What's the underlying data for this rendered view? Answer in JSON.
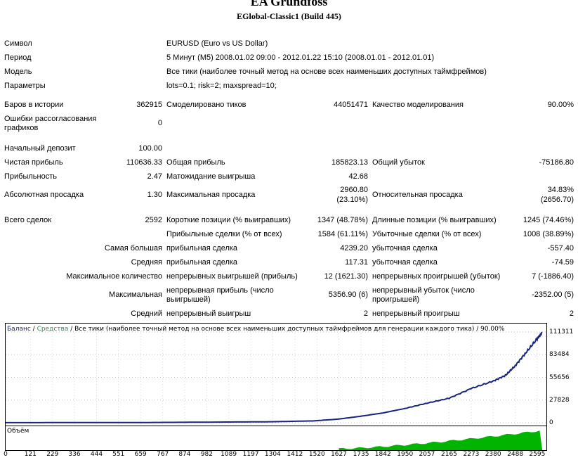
{
  "header": {
    "title": "EA Grundfoss",
    "server": "EGlobal-Classic1 (Build 445)"
  },
  "settings": [
    {
      "label": "Символ",
      "value": "EURUSD (Euro vs US Dollar)"
    },
    {
      "label": "Период",
      "value": "5 Минут (M5) 2008.01.02 09:00 - 2012.01.22 15:10 (2008.01.01 - 2012.01.01)"
    },
    {
      "label": "Модель",
      "value": "Все тики (наиболее точный метод на основе всех наименьших доступных таймфреймов)"
    },
    {
      "label": "Параметры",
      "value": "lots=0.1; risk=2; maxspread=10;"
    }
  ],
  "stats": {
    "bars_label": "Баров в истории",
    "bars_value": "362915",
    "ticks_label": "Смоделировано тиков",
    "ticks_value": "44051471",
    "quality_label": "Качество моделирования",
    "quality_value": "90.00%",
    "errors_label": "Ошибки рассогласования графиков",
    "errors_value": "0",
    "deposit_label": "Начальный депозит",
    "deposit_value": "100.00",
    "net_label": "Чистая прибыль",
    "net_value": "110636.33",
    "gross_profit_label": "Общая прибыль",
    "gross_profit_value": "185823.13",
    "gross_loss_label": "Общий убыток",
    "gross_loss_value": "-75186.80",
    "pf_label": "Прибыльность",
    "pf_value": "2.47",
    "payoff_label": "Матожидание выигрыша",
    "payoff_value": "42.68",
    "abs_dd_label": "Абсолютная просадка",
    "abs_dd_value": "1.30",
    "max_dd_label": "Максимальная просадка",
    "max_dd_value1": "2960.80",
    "max_dd_value2": "(23.10%)",
    "rel_dd_label": "Относительная просадка",
    "rel_dd_value1": "34.83%",
    "rel_dd_value2": "(2656.70)",
    "trades_label": "Всего сделок",
    "trades_value": "2592",
    "short_label": "Короткие позиции (% выигравших)",
    "short_value": "1347 (48.78%)",
    "long_label": "Длинные позиции (% выигравших)",
    "long_value": "1245 (74.46%)",
    "profit_trades_label": "Прибыльные сделки (% от всех)",
    "profit_trades_value": "1584 (61.11%)",
    "loss_trades_label": "Убыточные сделки (% от всех)",
    "loss_trades_value": "1008 (38.89%)",
    "largest_label": "Самая большая",
    "largest_profit_label": "прибыльная сделка",
    "largest_profit_value": "4239.20",
    "largest_loss_label": "убыточная сделка",
    "largest_loss_value": "-557.40",
    "average_label": "Средняя",
    "average_profit_label": "прибыльная сделка",
    "average_profit_value": "117.31",
    "average_loss_label": "убыточная сделка",
    "average_loss_value": "-74.59",
    "maxcount_label": "Максимальное количество",
    "maxcount_wins_label": "непрерывных выигрышей (прибыль)",
    "maxcount_wins_value": "12 (1621.30)",
    "maxcount_losses_label": "непрерывных проигрышей (убыток)",
    "maxcount_losses_value": "7 (-1886.40)",
    "maximal_label": "Максимальная",
    "maximal_profit_label": "непрерывная прибыль (число выигрышей)",
    "maximal_profit_value": "5356.90 (6)",
    "maximal_loss_label": "непрерывный убыток (число проигрышей)",
    "maximal_loss_value": "-2352.00 (5)",
    "avgcons_label": "Средний",
    "avgcons_wins_label": "непрерывный выигрыш",
    "avgcons_wins_value": "2",
    "avgcons_losses_label": "непрерывный проигрыш",
    "avgcons_losses_value": "2"
  },
  "chart": {
    "legend_balance": "Баланс",
    "legend_sep": " / ",
    "legend_equity": "Средства",
    "legend_rest": " / Все тики (наиболее точный метод на основе всех наименьших доступных таймфреймов для генерации каждого тика) / 90.00%",
    "volume_label": "Объём",
    "colors": {
      "balance": "#1a237e",
      "volume": "#00b400",
      "equity": "#2e8b57"
    }
  },
  "chart_data": {
    "type": "line",
    "series": [
      {
        "name": "Баланс",
        "x": [
          0,
          300,
          700,
          1000,
          1300,
          1500,
          1627,
          1735,
          1842,
          1950,
          2057,
          2165,
          2273,
          2380,
          2440,
          2488,
          2540,
          2595,
          2620
        ],
        "y": [
          100,
          150,
          300,
          700,
          1200,
          2200,
          4500,
          8000,
          12000,
          17500,
          24000,
          30000,
          42000,
          51000,
          58000,
          70000,
          86000,
          103000,
          110636
        ]
      }
    ],
    "y_ticks": [
      "111311",
      "83484",
      "55656",
      "27828",
      "0"
    ],
    "x_ticks": [
      "0",
      "121",
      "229",
      "336",
      "444",
      "551",
      "659",
      "767",
      "874",
      "982",
      "1089",
      "1197",
      "1304",
      "1412",
      "1520",
      "1627",
      "1735",
      "1842",
      "1950",
      "2057",
      "2165",
      "2273",
      "2380",
      "2488",
      "2595"
    ],
    "xlim": [
      0,
      2640
    ],
    "ylim": [
      0,
      111311
    ]
  }
}
